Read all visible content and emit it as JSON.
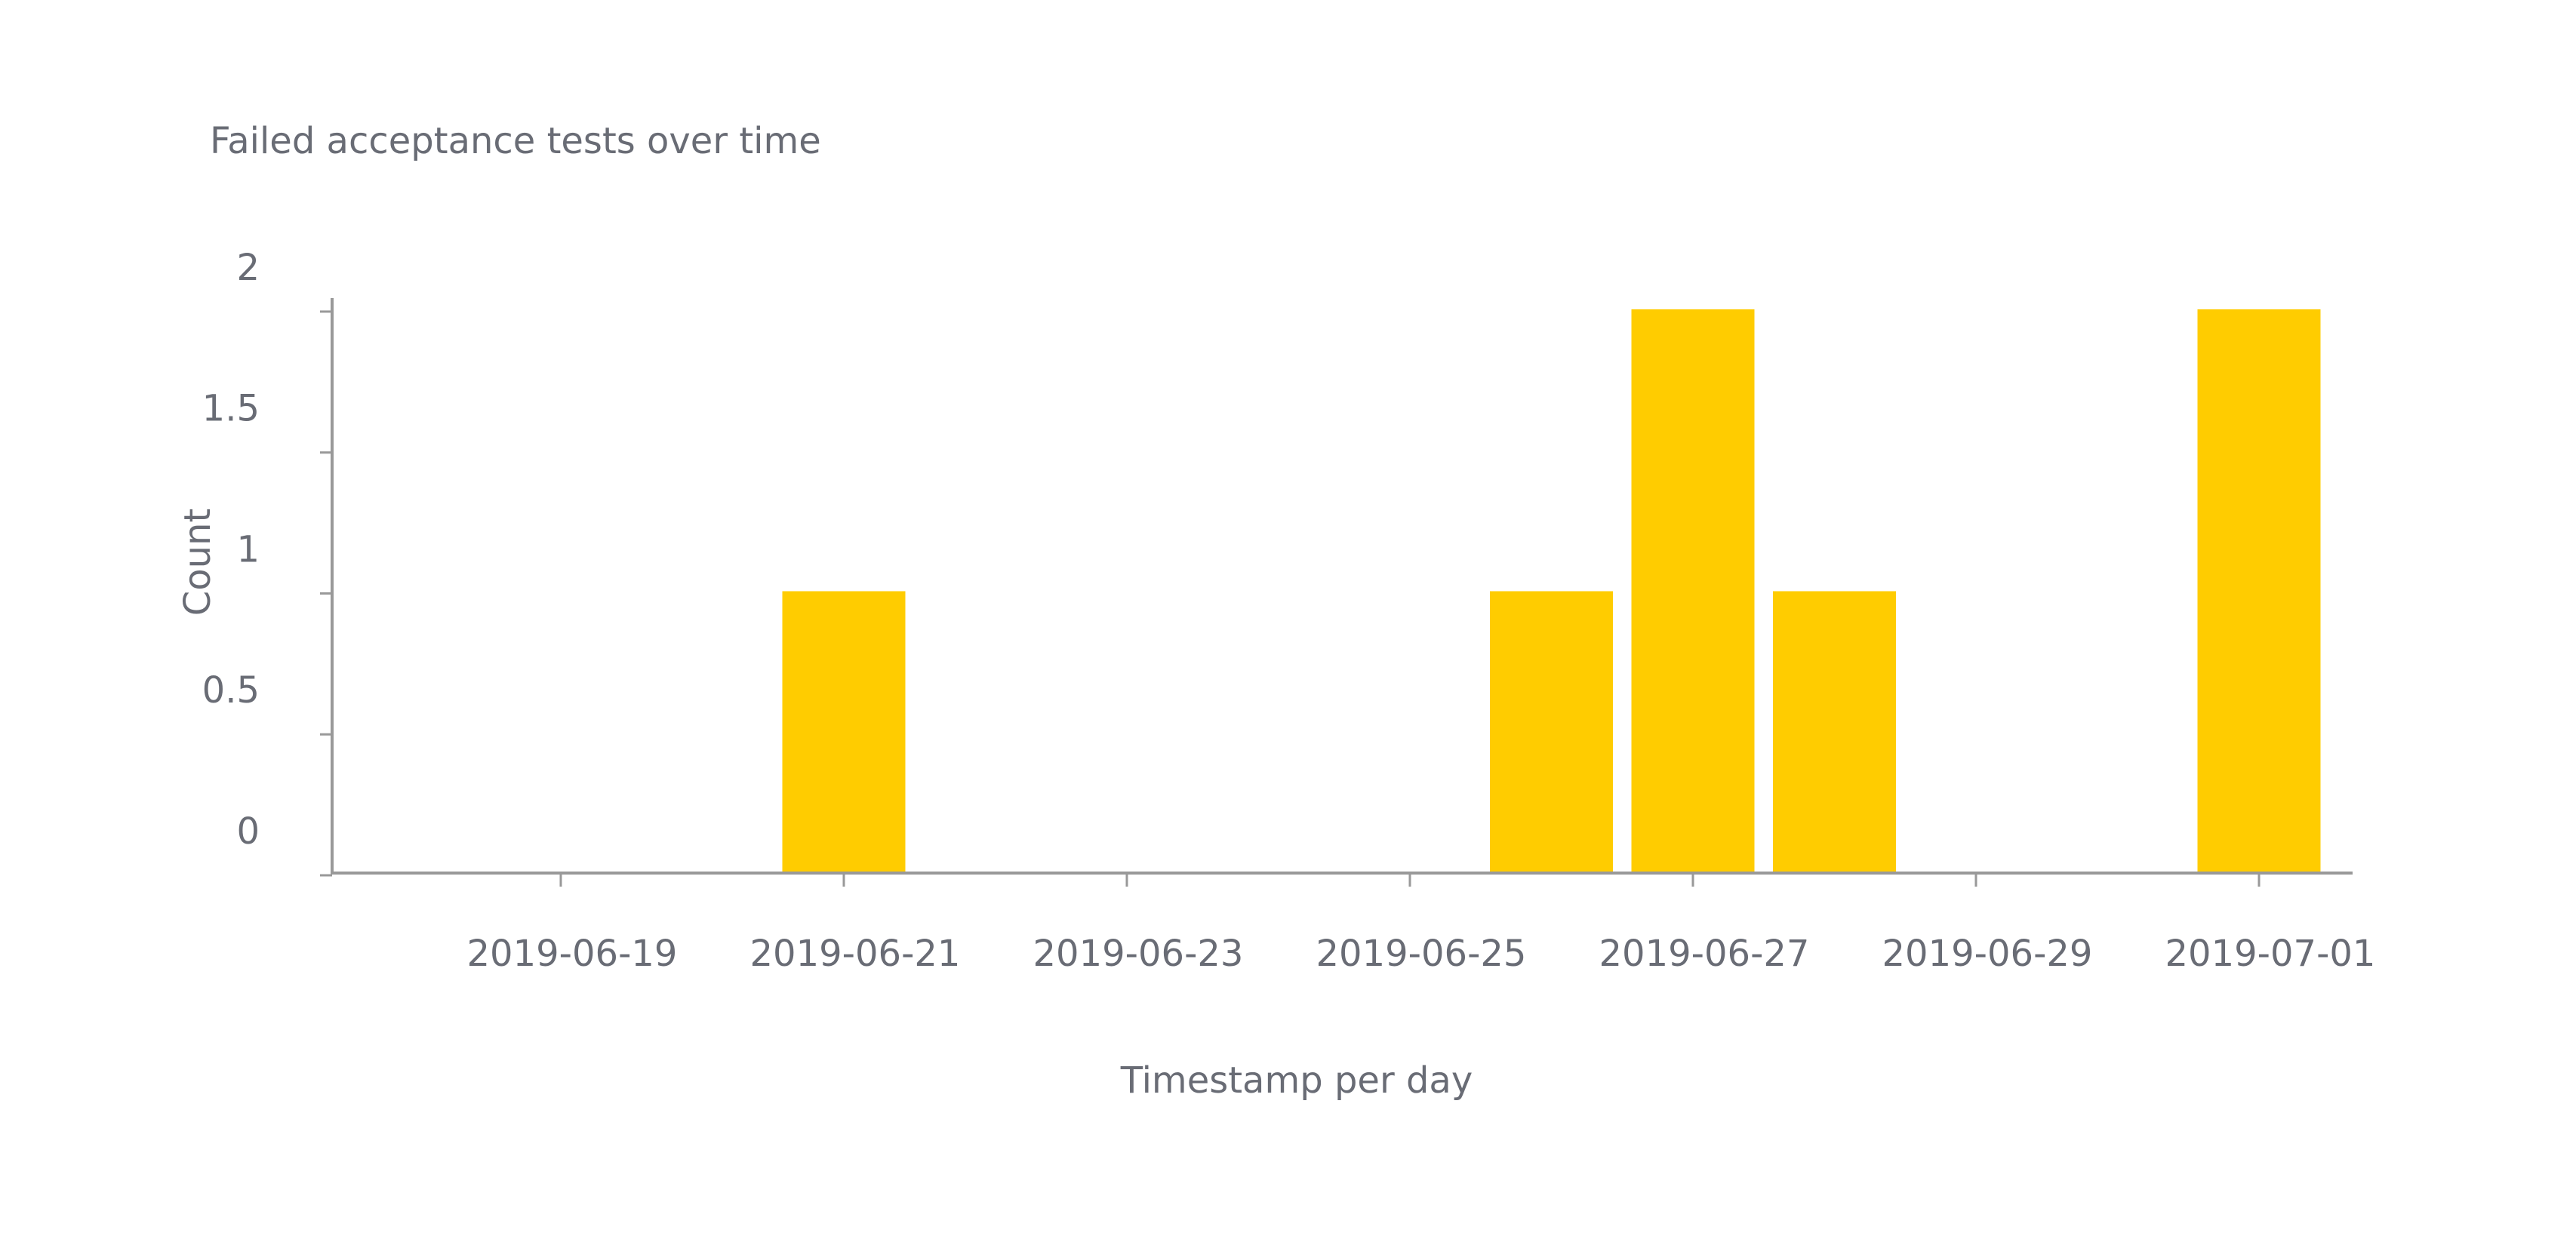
{
  "chart_data": {
    "type": "bar",
    "title": "Failed acceptance tests over time",
    "xlabel": "Timestamp per day",
    "ylabel": "Count",
    "x_tick_labels": [
      "2019-06-19",
      "2019-06-21",
      "2019-06-23",
      "2019-06-25",
      "2019-06-27",
      "2019-06-29",
      "2019-07-01"
    ],
    "y_tick_labels": [
      "0",
      "0.5",
      "1",
      "1.5",
      "2"
    ],
    "y_ticks": [
      0,
      0.5,
      1,
      1.5,
      2
    ],
    "ylim": [
      0,
      2.04
    ],
    "xlim": [
      "2019-06-18",
      "2019-07-01"
    ],
    "bar_color": "#ffcc00",
    "axis_color": "#999999",
    "text_color": "#696c75",
    "grid": false,
    "legend": "none",
    "bars": [
      {
        "date": "2019-06-21",
        "value": 1
      },
      {
        "date": "2019-06-26",
        "value": 1
      },
      {
        "date": "2019-06-27",
        "value": 2
      },
      {
        "date": "2019-06-28",
        "value": 1
      },
      {
        "date": "2019-07-01",
        "value": 2
      }
    ]
  }
}
